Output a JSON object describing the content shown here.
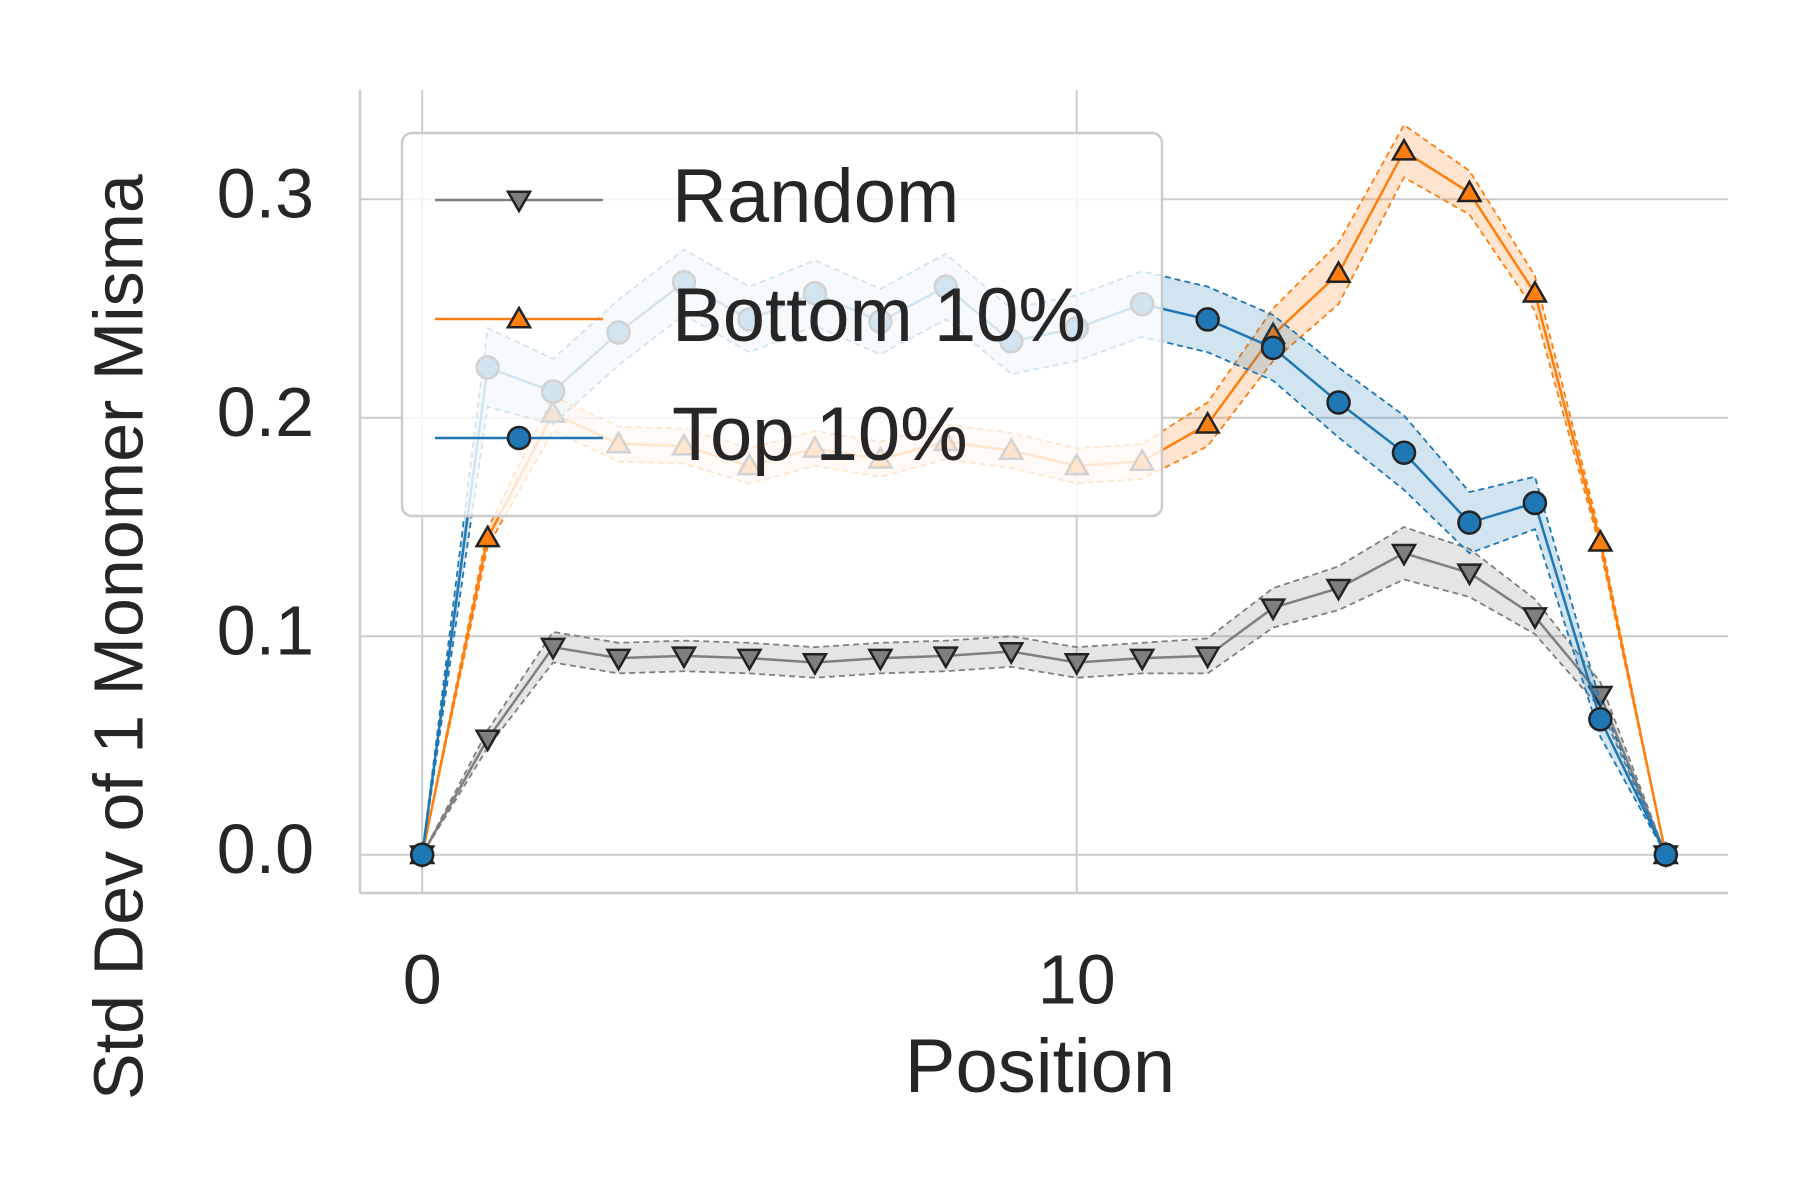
{
  "chart_data": {
    "type": "line",
    "xlabel": "Position",
    "ylabel": "Std Dev of 1 Monomer Misma",
    "x": [
      0,
      1,
      2,
      3,
      4,
      5,
      6,
      7,
      8,
      9,
      10,
      11,
      12,
      13,
      14,
      15,
      16,
      17,
      18,
      19
    ],
    "series": [
      {
        "name": "Random",
        "color": "#7f7f7f",
        "marker": "triangle-down",
        "values": [
          0,
          0.053,
          0.095,
          0.09,
          0.091,
          0.09,
          0.088,
          0.09,
          0.091,
          0.093,
          0.088,
          0.09,
          0.091,
          0.113,
          0.122,
          0.138,
          0.129,
          0.109,
          0.073,
          0
        ],
        "error": [
          0,
          0.004,
          0.007,
          0.007,
          0.007,
          0.007,
          0.007,
          0.007,
          0.007,
          0.007,
          0.007,
          0.007,
          0.008,
          0.009,
          0.01,
          0.012,
          0.011,
          0.008,
          0.006,
          0
        ]
      },
      {
        "name": "Bottom 10%",
        "color": "#ff7f0e",
        "marker": "triangle-up",
        "values": [
          0,
          0.145,
          0.202,
          0.188,
          0.187,
          0.178,
          0.186,
          0.181,
          0.189,
          0.185,
          0.178,
          0.18,
          0.197,
          0.238,
          0.266,
          0.322,
          0.303,
          0.257,
          0.143,
          0
        ],
        "error": [
          0,
          0.004,
          0.008,
          0.008,
          0.008,
          0.008,
          0.008,
          0.008,
          0.008,
          0.008,
          0.008,
          0.008,
          0.01,
          0.012,
          0.014,
          0.012,
          0.01,
          0.008,
          0.003,
          0
        ]
      },
      {
        "name": "Top 10%",
        "color": "#1f77b4",
        "marker": "circle",
        "values": [
          0,
          0.223,
          0.212,
          0.239,
          0.262,
          0.245,
          0.257,
          0.244,
          0.26,
          0.235,
          0.241,
          0.252,
          0.245,
          0.232,
          0.207,
          0.184,
          0.152,
          0.161,
          0.062,
          0
        ],
        "error": [
          0,
          0.018,
          0.015,
          0.015,
          0.015,
          0.015,
          0.015,
          0.015,
          0.015,
          0.015,
          0.015,
          0.015,
          0.015,
          0.015,
          0.016,
          0.017,
          0.014,
          0.012,
          0.008,
          0
        ]
      }
    ],
    "xlim": [
      -0.95,
      19.95
    ],
    "ylim": [
      -0.0175,
      0.35
    ],
    "xticks": [
      0,
      10
    ],
    "yticks": [
      {
        "value": 0,
        "label": "0.0"
      },
      0.1,
      0.2,
      0.3
    ],
    "grid": true,
    "legend": "upper left"
  }
}
